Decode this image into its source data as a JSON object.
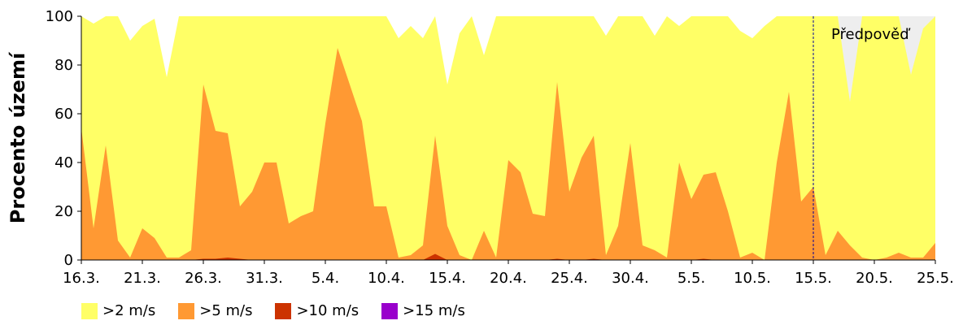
{
  "chart_data": {
    "type": "area",
    "stacked": false,
    "ylabel": "Procento území",
    "xlabel": "",
    "ylim": [
      0,
      100
    ],
    "yticks": [
      0,
      20,
      40,
      60,
      80,
      100
    ],
    "grid": false,
    "legend_position": "bottom-left",
    "forecast_label": "Předpověď",
    "forecast_start": "15.5.",
    "x_tick_labels": [
      "16.3.",
      "21.3.",
      "26.3.",
      "31.3.",
      "5.4.",
      "10.4.",
      "15.4.",
      "20.4.",
      "25.4.",
      "30.4.",
      "5.5.",
      "10.5.",
      "15.5.",
      "20.5.",
      "25.5."
    ],
    "x": [
      "16.3.",
      "17.3.",
      "18.3.",
      "19.3.",
      "20.3.",
      "21.3.",
      "22.3.",
      "23.3.",
      "24.3.",
      "25.3.",
      "26.3.",
      "27.3.",
      "28.3.",
      "29.3.",
      "30.3.",
      "31.3.",
      "1.4.",
      "2.4.",
      "3.4.",
      "4.4.",
      "5.4.",
      "6.4.",
      "7.4.",
      "8.4.",
      "9.4.",
      "10.4.",
      "11.4.",
      "12.4.",
      "13.4.",
      "14.4.",
      "15.4.",
      "16.4.",
      "17.4.",
      "18.4.",
      "19.4.",
      "20.4.",
      "21.4.",
      "22.4.",
      "23.4.",
      "24.4.",
      "25.4.",
      "26.4.",
      "27.4.",
      "28.4.",
      "29.4.",
      "30.4.",
      "1.5.",
      "2.5.",
      "3.5.",
      "4.5.",
      "5.5.",
      "6.5.",
      "7.5.",
      "8.5.",
      "9.5.",
      "10.5.",
      "11.5.",
      "12.5.",
      "13.5.",
      "14.5.",
      "15.5.",
      "16.5.",
      "17.5.",
      "18.5.",
      "19.5.",
      "20.5.",
      "21.5.",
      "22.5.",
      "23.5.",
      "24.5.",
      "25.5."
    ],
    "series": [
      {
        "name": ">2 m/s",
        "color": "#ffff66",
        "values": [
          100,
          97,
          100,
          100,
          90,
          96,
          99,
          75,
          100,
          100,
          100,
          100,
          100,
          100,
          100,
          100,
          100,
          100,
          100,
          100,
          100,
          100,
          100,
          100,
          100,
          100,
          91,
          96,
          91,
          100,
          72,
          93,
          100,
          84,
          100,
          100,
          100,
          100,
          100,
          100,
          100,
          100,
          100,
          92,
          100,
          100,
          100,
          92,
          100,
          96,
          100,
          100,
          100,
          100,
          94,
          91,
          96,
          100,
          100,
          100,
          100,
          100,
          100,
          65,
          100,
          100,
          100,
          100,
          76,
          95,
          100
        ]
      },
      {
        "name": ">5 m/s",
        "color": "#ff9933",
        "values": [
          54,
          13,
          47,
          8,
          1,
          13,
          9,
          1,
          1,
          4,
          72,
          53,
          52,
          22,
          28,
          40,
          40,
          15,
          18,
          20,
          56,
          87,
          72,
          57,
          22,
          22,
          1,
          2,
          6,
          51,
          14,
          2,
          0,
          12,
          1,
          41,
          36,
          19,
          18,
          73,
          28,
          42,
          51,
          2,
          14,
          48,
          6,
          4,
          1,
          40,
          25,
          35,
          36,
          20,
          1,
          3,
          0,
          40,
          69,
          24,
          30,
          2,
          12,
          6,
          1,
          0,
          1,
          3,
          1,
          1,
          7
        ]
      },
      {
        "name": ">10 m/s",
        "color": "#cc3300",
        "values": [
          0,
          0,
          0,
          0,
          0,
          0,
          0,
          0,
          0,
          0,
          0.5,
          0.5,
          1,
          0.5,
          0,
          0,
          0,
          0,
          0,
          0,
          0,
          0,
          0,
          0,
          0,
          0,
          0,
          0,
          0,
          2.5,
          0,
          0,
          0,
          0,
          0,
          0,
          0,
          0,
          0,
          0.5,
          0,
          0,
          0.5,
          0,
          0,
          0,
          0,
          0,
          0,
          0,
          0,
          0.5,
          0,
          0,
          0,
          0,
          0,
          0,
          0,
          0,
          0,
          0,
          0,
          0,
          0,
          0,
          0,
          0,
          0,
          0,
          0
        ]
      },
      {
        "name": ">15 m/s",
        "color": "#9900cc",
        "values": [
          0,
          0,
          0,
          0,
          0,
          0,
          0,
          0,
          0,
          0,
          0,
          0,
          0,
          0,
          0,
          0,
          0,
          0,
          0,
          0,
          0,
          0,
          0,
          0,
          0,
          0,
          0,
          0,
          0,
          0,
          0,
          0,
          0,
          0,
          0,
          0,
          0,
          0,
          0,
          0,
          0,
          0,
          0,
          0,
          0,
          0,
          0,
          0,
          0,
          0,
          0,
          0,
          0,
          0,
          0,
          0,
          0,
          0,
          0,
          0,
          0,
          0,
          0,
          0,
          0,
          0,
          0,
          0,
          0,
          0,
          0
        ]
      }
    ]
  },
  "colors": {
    "forecast_background": "#eeeeee",
    "forecast_line": "#000099",
    "axis": "#000000"
  }
}
